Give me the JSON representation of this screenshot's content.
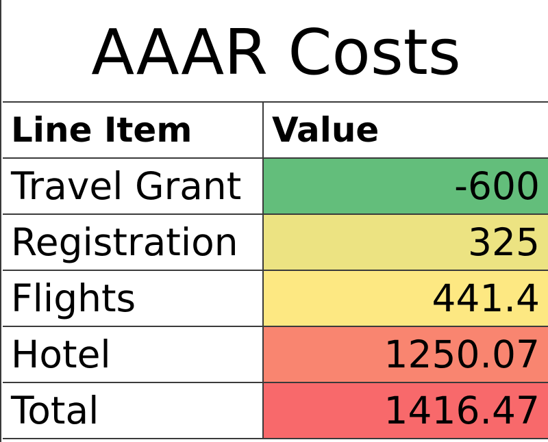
{
  "sheet": {
    "title": "AAAR Costs",
    "header": {
      "line_item": "Line Item",
      "value": "Value"
    },
    "rows": [
      {
        "line_item": "Travel Grant",
        "value": "-600",
        "fill": "#63be7b"
      },
      {
        "line_item": "Registration",
        "value": "325",
        "fill": "#ece382"
      },
      {
        "line_item": "Flights",
        "value": "441.4",
        "fill": "#fde882"
      },
      {
        "line_item": "Hotel",
        "value": "1250.07",
        "fill": "#f98570"
      },
      {
        "line_item": "Total",
        "value": "1416.47",
        "fill": "#f8696b"
      }
    ]
  }
}
